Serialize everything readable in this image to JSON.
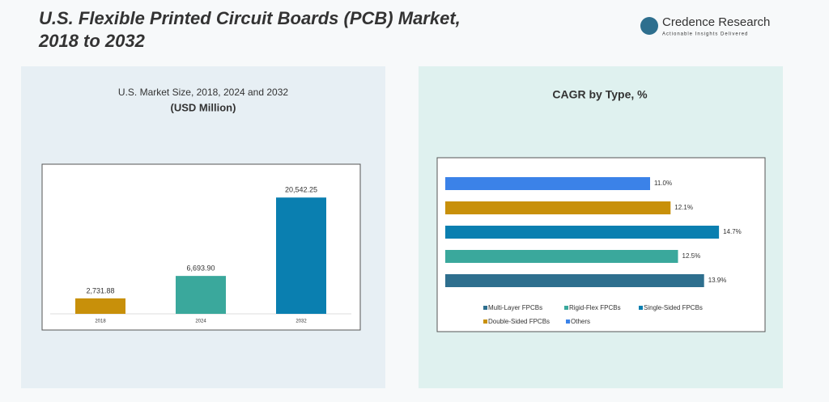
{
  "header": {
    "title_line1": "U.S. Flexible Printed Circuit Boards (PCB) Market,",
    "title_line2": "2018 to 2032",
    "brand": "Credence Research",
    "tagline": "Actionable Insights Delivered"
  },
  "chart_data": [
    {
      "type": "bar",
      "title": "U.S. Market Size, 2018, 2024 and 2032",
      "subtitle": "(USD Million)",
      "categories": [
        "2018",
        "2024",
        "2032"
      ],
      "values": [
        2731.88,
        6693.9,
        20542.25
      ],
      "value_labels": [
        "2,731.88",
        "6,693.90",
        "20,542.25"
      ],
      "colors": [
        "#c8900a",
        "#3aa89c",
        "#0a7fb0"
      ],
      "ylim": [
        0,
        25000
      ]
    },
    {
      "type": "hbar",
      "title": "CAGR by Type, %",
      "categories": [
        "Multi-Layer FPCBs",
        "Rigid-Flex FPCBs",
        "Single-Sided FPCBs",
        "Double-Sided FPCBs",
        "Others"
      ],
      "values": [
        13.9,
        12.5,
        14.7,
        12.1,
        11.0
      ],
      "value_labels": [
        "13.9%",
        "12.5%",
        "14.7%",
        "12.1%",
        "11.0%"
      ],
      "colors": [
        "#2e6f8e",
        "#3aa89c",
        "#0a7fb0",
        "#c8900a",
        "#3b82e8"
      ],
      "xlim": [
        0,
        15
      ],
      "legend": "bottom"
    }
  ]
}
